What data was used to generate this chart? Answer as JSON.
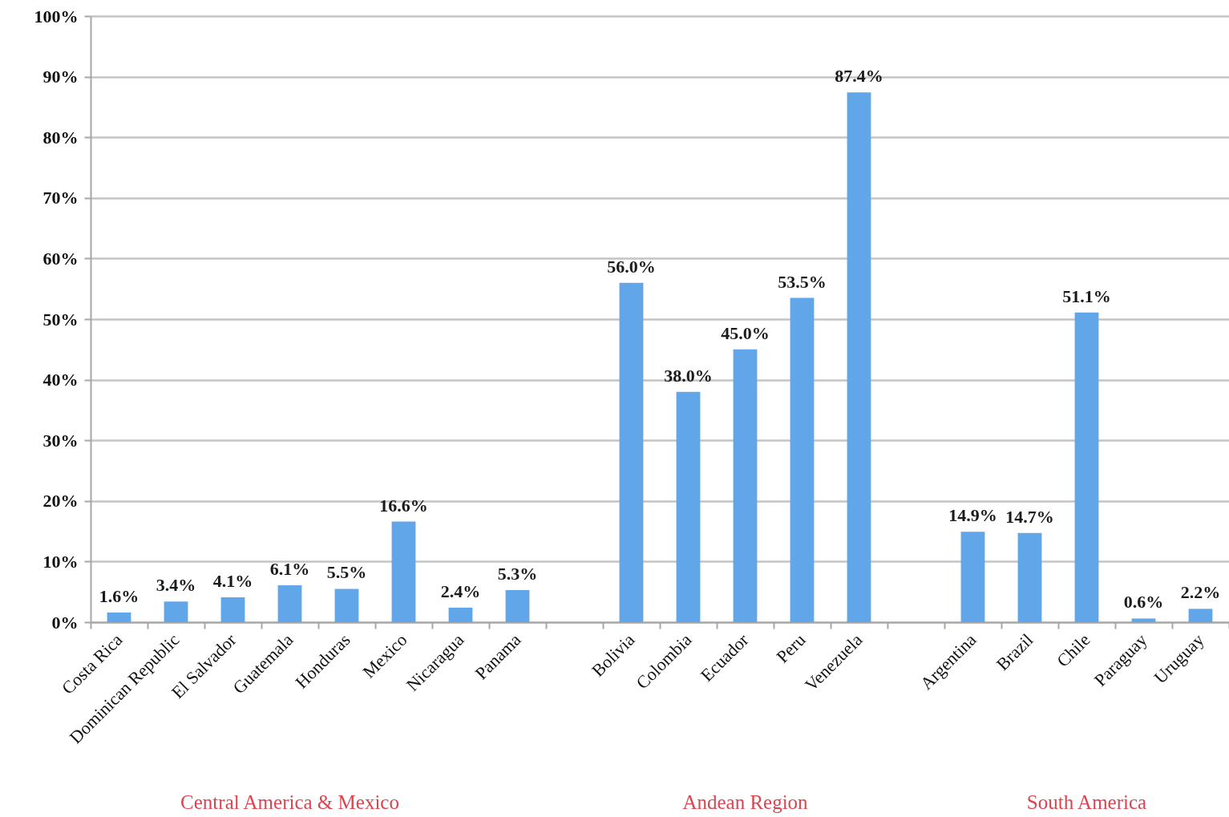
{
  "chart_data": {
    "type": "bar",
    "categories": [
      "Costa Rica",
      "Dominican Republic",
      "El Salvador",
      "Guatemala",
      "Honduras",
      "Mexico",
      "Nicaragua",
      "Panama",
      null,
      "Bolivia",
      "Colombia",
      "Ecuador",
      "Peru",
      "Venezuela",
      null,
      "Argentina",
      "Brazil",
      "Chile",
      "Paraguay",
      "Uruguay"
    ],
    "values": [
      1.6,
      3.4,
      4.1,
      6.1,
      5.5,
      16.6,
      2.4,
      5.3,
      null,
      56.0,
      38.0,
      45.0,
      53.5,
      87.4,
      null,
      14.9,
      14.7,
      51.1,
      0.6,
      2.2
    ],
    "value_labels": [
      "1.6%",
      "3.4%",
      "4.1%",
      "6.1%",
      "5.5%",
      "16.6%",
      "2.4%",
      "5.3%",
      null,
      "56.0%",
      "38.0%",
      "45.0%",
      "53.5%",
      "87.4%",
      null,
      "14.9%",
      "14.7%",
      "51.1%",
      "0.6%",
      "2.2%"
    ],
    "color": "#62a6ea",
    "ylim": [
      0,
      100
    ],
    "yticks": [
      {
        "value": 0,
        "label": "0%"
      },
      {
        "value": 10,
        "label": "10%"
      },
      {
        "value": 20,
        "label": "20%"
      },
      {
        "value": 30,
        "label": "30%"
      },
      {
        "value": 40,
        "label": "40%"
      },
      {
        "value": 50,
        "label": "50%"
      },
      {
        "value": 60,
        "label": "60%"
      },
      {
        "value": 70,
        "label": "70%"
      },
      {
        "value": 80,
        "label": "80%"
      },
      {
        "value": 90,
        "label": "90%"
      },
      {
        "value": 100,
        "label": "100%"
      }
    ],
    "grid": "y",
    "annotations": [
      "Central America & Mexico",
      "Andean Region",
      "South America"
    ]
  }
}
